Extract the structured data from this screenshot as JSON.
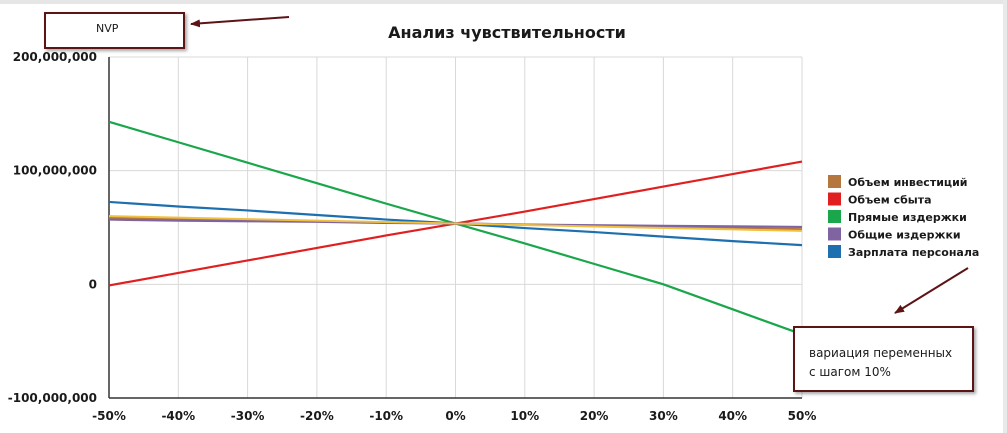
{
  "chart_data": {
    "type": "line",
    "title": "Анализ чувствительности",
    "x": [
      "-50%",
      "-40%",
      "-30%",
      "-20%",
      "-10%",
      "0%",
      "10%",
      "20%",
      "30%",
      "40%",
      "50%"
    ],
    "y_ticks": [
      "200,000,000",
      "100,000,000",
      "0",
      "-100,000,000"
    ],
    "ylim": [
      -100000000,
      200000000
    ],
    "grid": true,
    "legend_position": "right",
    "series": [
      {
        "name": "Объем инвестиций",
        "color": "#b5773e",
        "values": [
          58500000,
          57500000,
          56500000,
          55500000,
          54500000,
          53500000,
          52500000,
          51500000,
          50500000,
          49500000,
          48500000
        ]
      },
      {
        "name": "Объем сбыта",
        "color": "#e02020",
        "values": [
          -1000000,
          10000000,
          21000000,
          32000000,
          43000000,
          53500000,
          64000000,
          75000000,
          86000000,
          97000000,
          108000000
        ]
      },
      {
        "name": "Прямые издержки",
        "color": "#1aa64a",
        "values": [
          143000000,
          125000000,
          107000000,
          89000000,
          71000000,
          53500000,
          36000000,
          18000000,
          0,
          -22000000,
          -44000000
        ]
      },
      {
        "name": "Общие издержки",
        "color": "#8064a2",
        "values": [
          57000000,
          56000000,
          55500000,
          55000000,
          54000000,
          53500000,
          52500000,
          52000000,
          51500000,
          51000000,
          50500000
        ]
      },
      {
        "name": "Зарплата персонала",
        "color": "#1e6faf",
        "values": [
          72500000,
          68500000,
          65000000,
          61000000,
          57000000,
          53500000,
          49500000,
          46000000,
          42000000,
          38000000,
          34500000
        ]
      }
    ],
    "overlay_series": {
      "color": "#f0c040",
      "values": [
        60000000,
        58700000,
        57400000,
        56100000,
        54800000,
        53500000,
        52200000,
        50900000,
        49600000,
        48300000,
        47000000
      ]
    }
  },
  "annotations": {
    "npv": "NVP",
    "variation": [
      "вариация переменных",
      "с шагом 10%"
    ]
  },
  "colors": {
    "arrow": "#5c1416",
    "grid": "#d9d9d9",
    "axis": "#333333"
  }
}
